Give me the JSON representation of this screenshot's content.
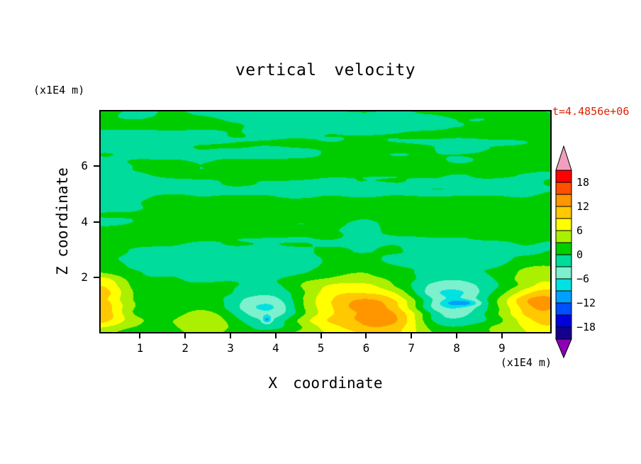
{
  "title": "vertical velocity",
  "time_label": "t=4.4856e+06",
  "colors": {
    "time_label": "#dd2200",
    "frame": "#000000",
    "background": "#ffffff"
  },
  "axes": {
    "x_label": "X coordinate",
    "x_unit": "(x1E4 m)",
    "y_label": "Z coordinate",
    "y_unit": "(x1E4 m)",
    "x_ticks": [
      "1",
      "2",
      "3",
      "4",
      "5",
      "6",
      "7",
      "8",
      "9"
    ],
    "y_ticks": [
      "2",
      "4",
      "6"
    ]
  },
  "chart_data": {
    "type": "heatmap",
    "style": "filled-contour",
    "title": "vertical velocity",
    "time_annotation": "t=4.4856e+06",
    "xlabel": "X coordinate (x1E4 m)",
    "ylabel": "Z coordinate (x1E4 m)",
    "x_range": [
      0.1,
      10.1
    ],
    "z_range": [
      0,
      8
    ],
    "x_tick_values": [
      1,
      2,
      3,
      4,
      5,
      6,
      7,
      8,
      9
    ],
    "y_tick_values": [
      2,
      4,
      6
    ],
    "levels": [
      -21,
      -18,
      -15,
      -12,
      -9,
      -6,
      -3,
      0,
      3,
      6,
      9,
      12,
      15,
      18,
      21
    ],
    "palette_low_to_high": [
      "#8c00b4",
      "#14008c",
      "#0000dc",
      "#0050ff",
      "#00a0ff",
      "#00e1e1",
      "#7df0cd",
      "#00dc9b",
      "#00cd00",
      "#aaf000",
      "#ffff00",
      "#ffc800",
      "#ff9600",
      "#ff5000",
      "#ff0000",
      "#f0a0be"
    ],
    "colorbar_labels": [
      "18",
      "12",
      "6",
      "0",
      "−6",
      "−12",
      "−18"
    ],
    "colorbar_label_values": [
      18,
      12,
      6,
      0,
      -6,
      -12,
      -18
    ],
    "field_model": {
      "description": "near-zero streaky background (±3 band, two greens) with warm updraft plumes and cool downdraft patches along the lower boundary",
      "noise_octaves": [
        {
          "fx": 0.5,
          "fz": 1.7,
          "amp": 1.5,
          "ox": 0,
          "oz": 0
        },
        {
          "fx": 1.4,
          "fz": 4.0,
          "amp": 0.8,
          "ox": 13.7,
          "oz": 7.3
        },
        {
          "fx": 0.22,
          "fz": 2.8,
          "amp": 0.9,
          "ox": 5.2,
          "oz": 2.9
        }
      ],
      "bottom_bias": {
        "amp": 2.0,
        "scale": 1.1
      },
      "blobs": [
        {
          "x": 0.0,
          "z": 1.05,
          "sx": 0.5,
          "sz": 0.8,
          "amp": 11
        },
        {
          "x": 2.35,
          "z": 0.5,
          "sx": 0.55,
          "sz": 0.45,
          "amp": 4
        },
        {
          "x": 3.85,
          "z": 0.8,
          "sx": 0.55,
          "sz": 0.6,
          "amp": -8.5
        },
        {
          "x": 3.8,
          "z": 0.45,
          "sx": 0.07,
          "sz": 0.1,
          "amp": -7
        },
        {
          "x": 5.75,
          "z": 0.95,
          "sx": 0.9,
          "sz": 0.8,
          "amp": 9.5
        },
        {
          "x": 6.6,
          "z": 0.5,
          "sx": 0.6,
          "sz": 0.5,
          "amp": 7
        },
        {
          "x": 7.8,
          "z": 0.95,
          "sx": 0.6,
          "sz": 0.6,
          "amp": -8.5
        },
        {
          "x": 8.15,
          "z": 1.05,
          "sx": 0.28,
          "sz": 0.08,
          "amp": -6.5
        },
        {
          "x": 9.95,
          "z": 1.0,
          "sx": 0.6,
          "sz": 0.85,
          "amp": 11
        }
      ]
    }
  }
}
